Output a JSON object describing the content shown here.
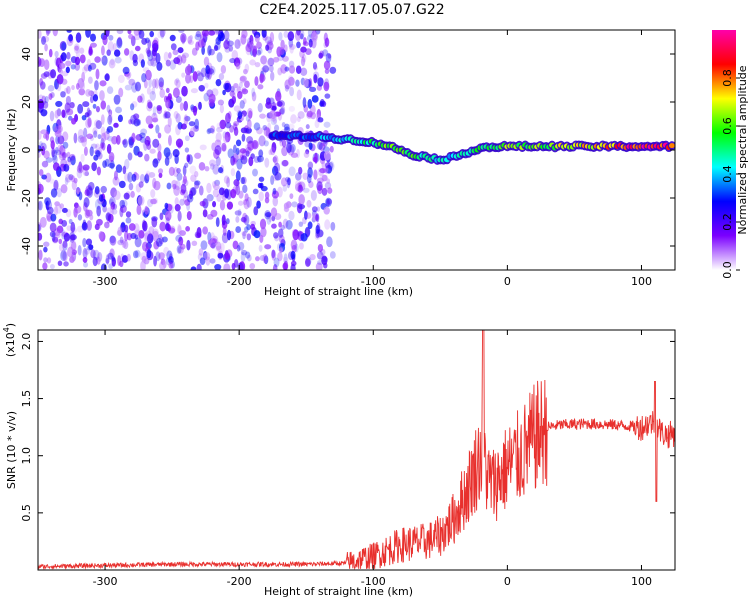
{
  "title": "C2E4.2025.117.05.07.G22",
  "chart_data": [
    {
      "type": "heatmap",
      "xlabel": "Height of straight line (km)",
      "ylabel": "Frequency (Hz)",
      "xlim": [
        -350,
        125
      ],
      "ylim": [
        -50,
        50
      ],
      "x_ticks": [
        -300,
        -200,
        -100,
        0,
        100
      ],
      "y_ticks": [
        -40,
        -20,
        0,
        20,
        40
      ],
      "colorbar": {
        "label": "Normalized spectral amplitude",
        "range": [
          0,
          1
        ],
        "ticks": [
          0.0,
          0.2,
          0.4,
          0.6,
          0.8
        ],
        "colormap": [
          "#ffffff",
          "#7b00ff",
          "#0000ff",
          "#00ffff",
          "#00ff00",
          "#ffff00",
          "#ff0000",
          "#ff00aa"
        ]
      },
      "noise_region": {
        "x_range": [
          -350,
          -130
        ],
        "freq_range": [
          -50,
          50
        ],
        "amplitude_range": [
          0.0,
          0.25
        ]
      },
      "signal_trace": [
        {
          "x": -175,
          "freq": 6,
          "amp": 0.3
        },
        {
          "x": -140,
          "freq": 5.5,
          "amp": 0.35
        },
        {
          "x": -110,
          "freq": 4,
          "amp": 0.45
        },
        {
          "x": -90,
          "freq": 2,
          "amp": 0.6
        },
        {
          "x": -70,
          "freq": -2,
          "amp": 0.55
        },
        {
          "x": -50,
          "freq": -4,
          "amp": 0.45
        },
        {
          "x": -40,
          "freq": -3,
          "amp": 0.4
        },
        {
          "x": -20,
          "freq": 1,
          "amp": 0.55
        },
        {
          "x": 0,
          "freq": 1.5,
          "amp": 0.6
        },
        {
          "x": 20,
          "freq": 1.5,
          "amp": 0.6
        },
        {
          "x": 60,
          "freq": 1.5,
          "amp": 0.7
        },
        {
          "x": 100,
          "freq": 1.5,
          "amp": 0.9
        },
        {
          "x": 125,
          "freq": 1.5,
          "amp": 0.85
        }
      ]
    },
    {
      "type": "line",
      "xlabel": "Height of straight line (km)",
      "ylabel": "SNR (10 * v/v)",
      "y_multiplier": "(x10",
      "y_multiplier_exp": "4",
      "xlim": [
        -350,
        125
      ],
      "ylim": [
        0,
        2.1
      ],
      "x_ticks": [
        -300,
        -200,
        -100,
        0,
        100
      ],
      "y_ticks": [
        0.5,
        1.0,
        1.5,
        2.0
      ],
      "y_tick_labels": [
        "0.5",
        "1.0",
        "1.5",
        "2.0"
      ],
      "series": [
        {
          "color": "#e8302d",
          "x": [
            -350,
            -300,
            -250,
            -200,
            -150,
            -120,
            -100,
            -80,
            -60,
            -50,
            -40,
            -30,
            -25,
            -20,
            -18,
            -15,
            -10,
            0,
            10,
            20,
            30,
            40,
            60,
            80,
            100,
            105,
            110,
            115,
            120,
            125
          ],
          "y": [
            0.03,
            0.04,
            0.05,
            0.05,
            0.05,
            0.06,
            0.12,
            0.22,
            0.25,
            0.3,
            0.45,
            0.7,
            0.85,
            1.0,
            1.1,
            0.8,
            0.75,
            0.9,
            1.0,
            1.15,
            1.25,
            1.27,
            1.28,
            1.27,
            1.25,
            1.28,
            1.3,
            1.2,
            1.18,
            1.2
          ]
        }
      ]
    }
  ]
}
